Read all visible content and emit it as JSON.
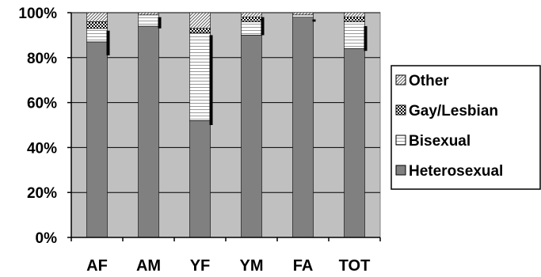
{
  "chart_data": {
    "type": "bar",
    "stacked": true,
    "categories": [
      "AF",
      "AM",
      "YF",
      "YM",
      "FA",
      "TOT"
    ],
    "series": [
      {
        "name": "Heterosexual",
        "values": [
          87,
          94,
          52,
          90,
          98,
          84
        ],
        "pattern": "solid-dark",
        "color": "#808080"
      },
      {
        "name": "Bisexual",
        "values": [
          6,
          5,
          39,
          6,
          1,
          12
        ],
        "pattern": "horizontal-stripes",
        "color": "#ffffff"
      },
      {
        "name": "Gay/Lesbian",
        "values": [
          3,
          0,
          2,
          2,
          0,
          2
        ],
        "pattern": "checker",
        "color": "#000000"
      },
      {
        "name": "Other",
        "values": [
          4,
          1,
          7,
          2,
          1,
          2
        ],
        "pattern": "diagonal-stripes",
        "color": "#808080"
      }
    ],
    "error_bar_tops": [
      92,
      98,
      90,
      98,
      97,
      94
    ],
    "error_bar_bottoms": [
      81,
      93,
      50,
      90,
      96,
      83
    ],
    "ylim": [
      0,
      100
    ],
    "yticks": [
      "0%",
      "20%",
      "40%",
      "60%",
      "80%",
      "100%"
    ],
    "plot_background": "#c0c0c0",
    "grid": true,
    "legend_position": "right",
    "legend_order": [
      "Other",
      "Gay/Lesbian",
      "Bisexual",
      "Heterosexual"
    ],
    "title": "",
    "xlabel": "",
    "ylabel": ""
  }
}
